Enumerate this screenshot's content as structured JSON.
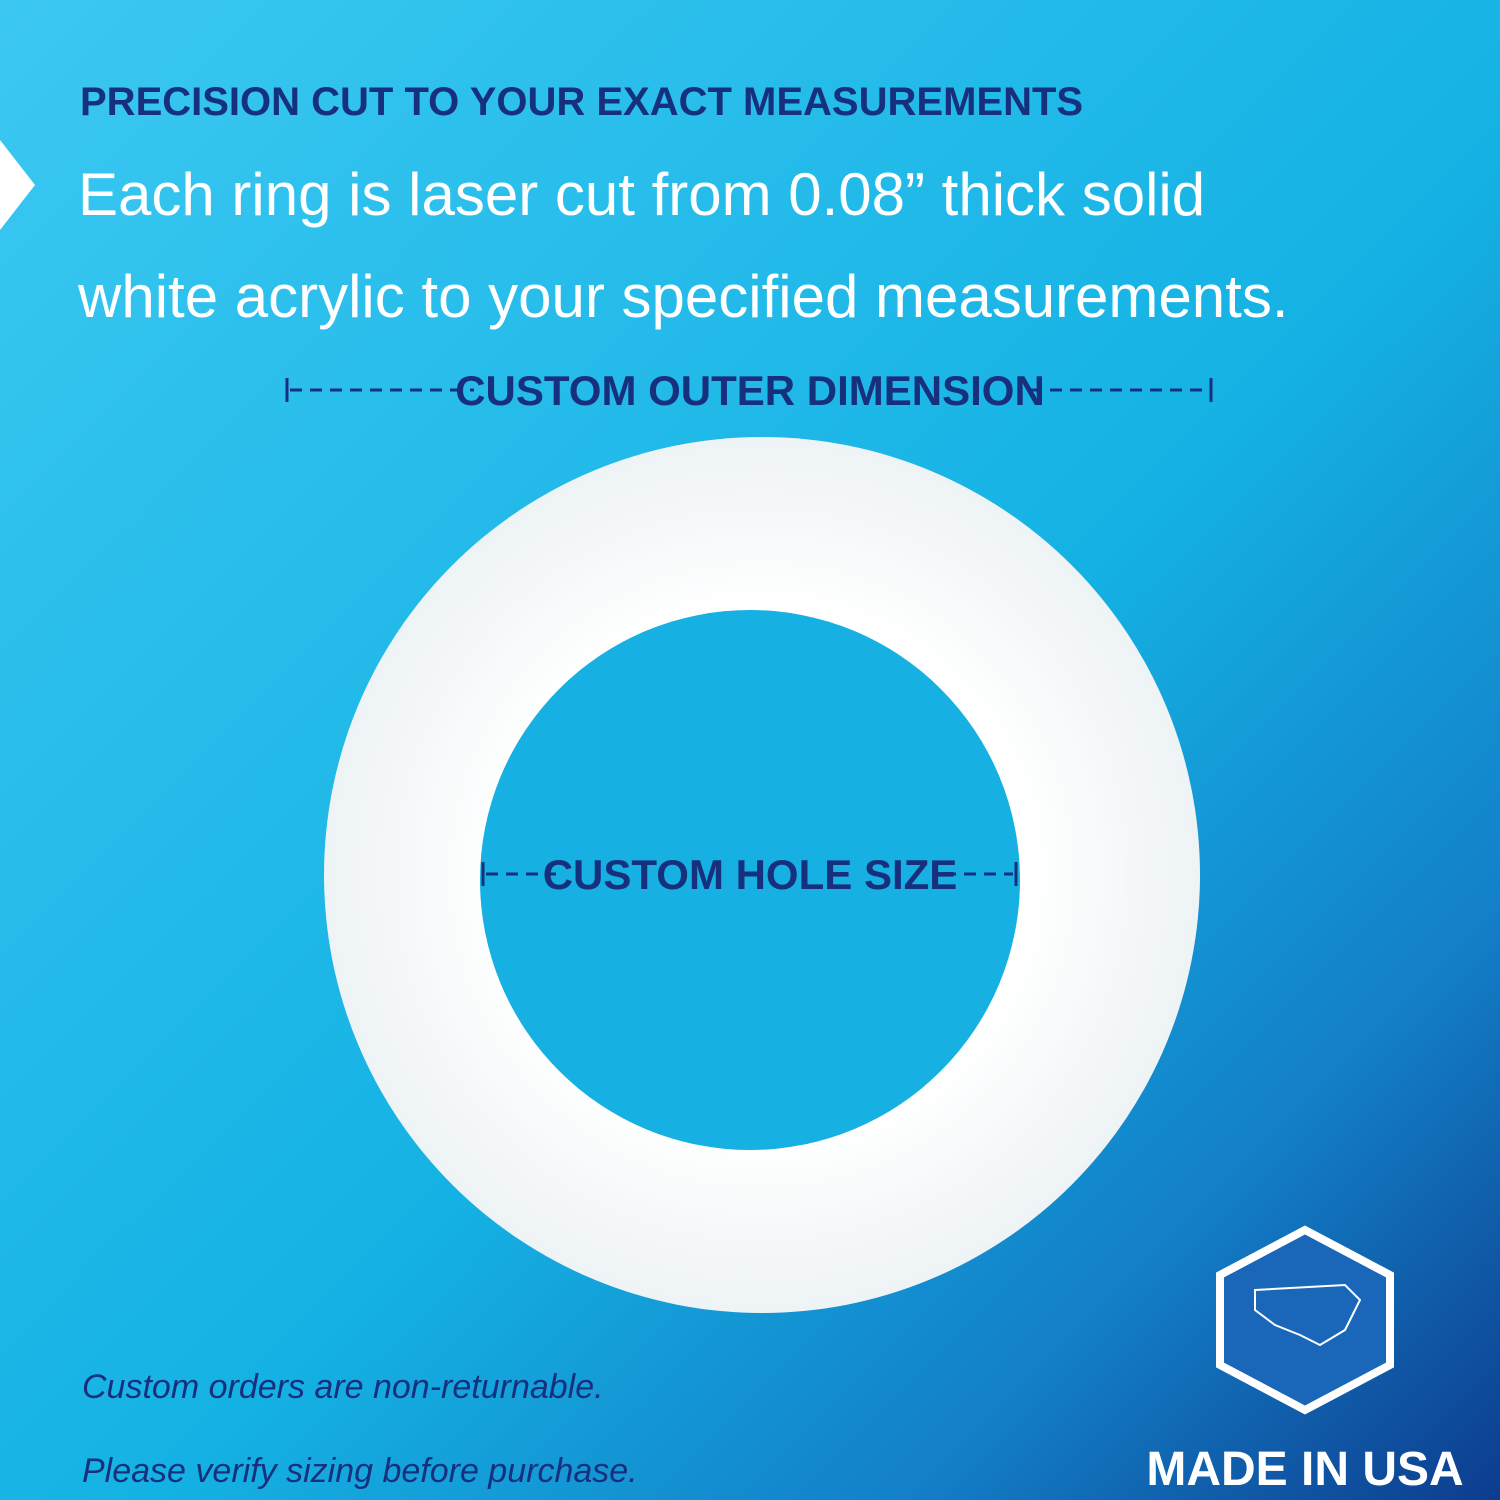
{
  "header": {
    "title": "PRECISION CUT TO YOUR EXACT MEASUREMENTS",
    "body": [
      "Each ring is laser cut from 0.08” thick solid",
      "white acrylic to your specified measurements."
    ]
  },
  "labels": {
    "outer": "CUSTOM OUTER DIMENSION",
    "hole": "CUSTOM HOLE SIZE"
  },
  "notice": [
    "Custom orders are non-returnable.",
    "Please verify sizing before purchase."
  ],
  "badge": "MADE IN USA"
}
